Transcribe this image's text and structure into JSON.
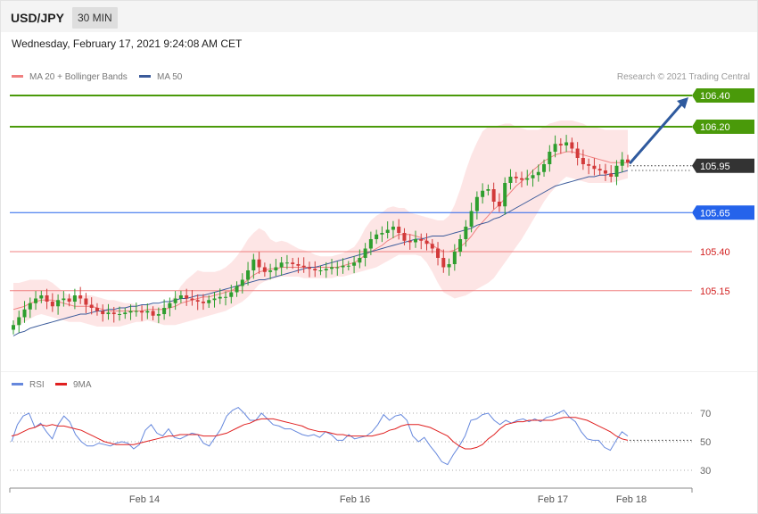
{
  "header": {
    "symbol": "USD/JPY",
    "timeframe": "30 MIN",
    "datetime": "Wednesday, February 17, 2021 9:24:08 AM CET"
  },
  "legend": {
    "ma20_label": "MA 20 + Bollinger Bands",
    "ma50_label": "MA 50",
    "credit": "Research © 2021 Trading Central"
  },
  "rsi_legend": {
    "rsi_label": "RSI",
    "ma_label": "9MA"
  },
  "colors": {
    "ma20": "#f08080",
    "ma50": "#3a5a9a",
    "bollinger_fill": "#fde0e0",
    "up_candle": "#2e9e2e",
    "down_candle": "#d23a3a",
    "target": "#4a9a0a",
    "pivot": "#2563eb",
    "support": "#f08080",
    "support_text": "#d22020",
    "current": "#333333",
    "arrow": "#2f5a9e",
    "rsi": "#6688dd",
    "rsi_ma": "#e02020"
  },
  "chart_data": [
    {
      "type": "candlestick",
      "title": "USD/JPY",
      "x_ticks": [
        "Feb 14",
        "Feb 16",
        "Feb 17",
        "Feb 18"
      ],
      "ylim": [
        104.85,
        106.55
      ],
      "levels": [
        {
          "value": 106.4,
          "label": "106.40",
          "kind": "target"
        },
        {
          "value": 106.2,
          "label": "106.20",
          "kind": "target"
        },
        {
          "value": 105.95,
          "label": "105.95",
          "kind": "current"
        },
        {
          "value": 105.65,
          "label": "105.65",
          "kind": "pivot"
        },
        {
          "value": 105.4,
          "label": "105.40",
          "kind": "support"
        },
        {
          "value": 105.15,
          "label": "105.15",
          "kind": "support"
        }
      ],
      "close": [
        104.93,
        104.98,
        105.03,
        105.07,
        105.1,
        105.12,
        105.08,
        105.05,
        105.09,
        105.1,
        105.08,
        105.12,
        105.1,
        105.06,
        105.04,
        105.02,
        105.0,
        105.01,
        105.0,
        105.0,
        105.01,
        105.02,
        105.02,
        105.01,
        105.02,
        104.99,
        105.0,
        105.04,
        105.07,
        105.1,
        105.12,
        105.1,
        105.09,
        105.08,
        105.07,
        105.09,
        105.1,
        105.11,
        105.11,
        105.14,
        105.18,
        105.22,
        105.28,
        105.35,
        105.3,
        105.27,
        105.28,
        105.3,
        105.33,
        105.33,
        105.32,
        105.31,
        105.3,
        105.29,
        105.28,
        105.28,
        105.29,
        105.3,
        105.3,
        105.31,
        105.31,
        105.33,
        105.36,
        105.42,
        105.48,
        105.51,
        105.52,
        105.54,
        105.56,
        105.52,
        105.47,
        105.46,
        105.48,
        105.47,
        105.45,
        105.42,
        105.36,
        105.3,
        105.32,
        105.4,
        105.48,
        105.56,
        105.66,
        105.75,
        105.79,
        105.8,
        105.72,
        105.69,
        105.84,
        105.88,
        105.87,
        105.86,
        105.87,
        105.89,
        105.91,
        105.96,
        106.04,
        106.09,
        106.08,
        106.1,
        106.06,
        106.0,
        105.96,
        105.95,
        105.93,
        105.92,
        105.9,
        105.88,
        105.95,
        105.99,
        105.97
      ],
      "bollinger_upper": [
        105.2,
        105.2,
        105.21,
        105.22,
        105.22,
        105.22,
        105.22,
        105.2,
        105.17,
        105.14,
        105.12,
        105.11,
        105.12,
        105.12,
        105.12,
        105.11,
        105.1,
        105.09,
        105.09,
        105.08,
        105.07,
        105.07,
        105.06,
        105.06,
        105.06,
        105.06,
        105.06,
        105.06,
        105.08,
        105.12,
        105.18,
        105.22,
        105.25,
        105.28,
        105.27,
        105.27,
        105.27,
        105.28,
        105.3,
        105.33,
        105.37,
        105.42,
        105.48,
        105.52,
        105.55,
        105.53,
        105.48,
        105.46,
        105.47,
        105.46,
        105.44,
        105.42,
        105.41,
        105.4,
        105.38,
        105.37,
        105.37,
        105.37,
        105.38,
        105.39,
        105.41,
        105.43,
        105.48,
        105.55,
        105.6,
        105.63,
        105.65,
        105.68,
        105.69,
        105.68,
        105.68,
        105.65,
        105.64,
        105.63,
        105.62,
        105.61,
        105.6,
        105.6,
        105.63,
        105.7,
        105.8,
        105.92,
        106.02,
        106.1,
        106.17,
        106.2,
        106.2,
        106.21,
        106.22,
        106.22,
        106.2,
        106.19,
        106.18,
        106.18,
        106.18,
        106.2,
        106.22,
        106.23,
        106.24,
        106.24,
        106.24,
        106.23,
        106.22,
        106.2,
        106.2,
        106.19,
        106.18,
        106.18,
        106.18,
        106.18,
        106.18
      ],
      "bollinger_lower": [
        104.92,
        104.93,
        104.95,
        104.97,
        104.99,
        105.0,
        104.99,
        104.98,
        104.97,
        104.96,
        104.95,
        104.95,
        104.95,
        104.94,
        104.93,
        104.92,
        104.92,
        104.92,
        104.92,
        104.92,
        104.93,
        104.94,
        104.95,
        104.95,
        104.96,
        104.95,
        104.94,
        104.93,
        104.93,
        104.93,
        104.94,
        104.95,
        104.96,
        104.97,
        104.98,
        104.99,
        105.0,
        105.01,
        105.02,
        105.04,
        105.06,
        105.08,
        105.11,
        105.15,
        105.19,
        105.21,
        105.22,
        105.23,
        105.24,
        105.24,
        105.24,
        105.24,
        105.23,
        105.23,
        105.23,
        105.23,
        105.23,
        105.23,
        105.24,
        105.24,
        105.25,
        105.26,
        105.27,
        105.28,
        105.29,
        105.3,
        105.32,
        105.34,
        105.36,
        105.38,
        105.38,
        105.38,
        105.38,
        105.37,
        105.33,
        105.27,
        105.2,
        105.14,
        105.12,
        105.1,
        105.11,
        105.12,
        105.14,
        105.16,
        105.18,
        105.2,
        105.23,
        105.28,
        105.33,
        105.38,
        105.43,
        105.48,
        105.54,
        105.6,
        105.66,
        105.72,
        105.77,
        105.81,
        105.85,
        105.88,
        105.87,
        105.86,
        105.85,
        105.84,
        105.84,
        105.84,
        105.84,
        105.84,
        105.85,
        105.86,
        105.87
      ],
      "ma20": [
        105.03,
        105.04,
        105.05,
        105.07,
        105.08,
        105.09,
        105.09,
        105.09,
        105.08,
        105.07,
        105.06,
        105.05,
        105.05,
        105.05,
        105.05,
        105.04,
        105.03,
        105.02,
        105.02,
        105.02,
        105.02,
        105.02,
        105.02,
        105.02,
        105.03,
        105.03,
        105.03,
        105.03,
        105.04,
        105.05,
        105.07,
        105.08,
        105.09,
        105.1,
        105.11,
        105.11,
        105.12,
        105.13,
        105.14,
        105.15,
        105.17,
        105.19,
        105.22,
        105.25,
        105.27,
        105.28,
        105.29,
        105.29,
        105.3,
        105.3,
        105.3,
        105.3,
        105.3,
        105.3,
        105.3,
        105.3,
        105.3,
        105.3,
        105.3,
        105.31,
        105.32,
        105.33,
        105.35,
        105.38,
        105.4,
        105.42,
        105.44,
        105.47,
        105.49,
        105.51,
        105.51,
        105.51,
        105.5,
        105.49,
        105.47,
        105.44,
        105.42,
        105.4,
        105.4,
        105.41,
        105.43,
        105.46,
        105.5,
        105.55,
        105.59,
        105.63,
        105.67,
        105.7,
        105.74,
        105.78,
        105.82,
        105.85,
        105.88,
        105.92,
        105.95,
        105.98,
        106.0,
        106.02,
        106.03,
        106.04,
        106.04,
        106.03,
        106.02,
        106.01,
        106.0,
        105.99,
        105.98,
        105.97,
        105.97,
        105.97,
        105.97
      ],
      "ma50": [
        104.86,
        104.88,
        104.89,
        104.91,
        104.92,
        104.93,
        104.94,
        104.95,
        104.96,
        104.97,
        104.98,
        104.99,
        105.0,
        105.0,
        105.01,
        105.02,
        105.02,
        105.03,
        105.03,
        105.04,
        105.04,
        105.05,
        105.05,
        105.06,
        105.06,
        105.07,
        105.07,
        105.08,
        105.08,
        105.09,
        105.1,
        105.1,
        105.11,
        105.12,
        105.12,
        105.13,
        105.14,
        105.15,
        105.16,
        105.17,
        105.18,
        105.19,
        105.2,
        105.21,
        105.22,
        105.22,
        105.23,
        105.24,
        105.25,
        105.26,
        105.27,
        105.28,
        105.29,
        105.3,
        105.3,
        105.31,
        105.32,
        105.33,
        105.34,
        105.35,
        105.36,
        105.37,
        105.38,
        105.39,
        105.4,
        105.41,
        105.42,
        105.43,
        105.44,
        105.45,
        105.46,
        105.47,
        105.48,
        105.48,
        105.49,
        105.5,
        105.5,
        105.5,
        105.51,
        105.52,
        105.53,
        105.54,
        105.55,
        105.57,
        105.58,
        105.59,
        105.61,
        105.62,
        105.64,
        105.66,
        105.68,
        105.7,
        105.72,
        105.74,
        105.76,
        105.78,
        105.8,
        105.82,
        105.83,
        105.84,
        105.85,
        105.86,
        105.87,
        105.88,
        105.88,
        105.89,
        105.89,
        105.9,
        105.9,
        105.91,
        105.92
      ]
    },
    {
      "type": "line",
      "title": "RSI",
      "ylim": [
        20,
        80
      ],
      "y_ticks": [
        30,
        50,
        70
      ],
      "series": [
        {
          "name": "RSI",
          "values": [
            50,
            62,
            68,
            70,
            60,
            63,
            57,
            52,
            62,
            68,
            64,
            55,
            50,
            47,
            47,
            49,
            48,
            47,
            49,
            50,
            49,
            45,
            48,
            58,
            62,
            56,
            54,
            59,
            53,
            52,
            54,
            56,
            55,
            49,
            47,
            53,
            59,
            68,
            72,
            74,
            70,
            65,
            65,
            70,
            66,
            62,
            61,
            59,
            59,
            57,
            55,
            54,
            55,
            53,
            57,
            55,
            51,
            51,
            55,
            52,
            53,
            54,
            57,
            62,
            69,
            65,
            68,
            69,
            65,
            54,
            50,
            53,
            47,
            42,
            36,
            34,
            41,
            47,
            54,
            65,
            66,
            69,
            70,
            65,
            62,
            65,
            63,
            65,
            66,
            64,
            66,
            64,
            67,
            68,
            70,
            72,
            67,
            64,
            57,
            52,
            51,
            51,
            46,
            44,
            51,
            57,
            54
          ]
        },
        {
          "name": "9MA",
          "values": [
            54,
            55,
            57,
            59,
            60,
            62,
            61,
            62,
            61,
            61,
            60,
            59,
            58,
            56,
            54,
            52,
            50,
            49,
            48,
            48,
            48,
            48,
            49,
            50,
            51,
            52,
            53,
            54,
            54,
            55,
            55,
            55,
            55,
            54,
            54,
            54,
            55,
            56,
            58,
            60,
            62,
            63,
            65,
            66,
            66,
            66,
            65,
            64,
            63,
            62,
            61,
            59,
            58,
            57,
            57,
            56,
            55,
            55,
            54,
            54,
            54,
            54,
            54,
            55,
            56,
            58,
            59,
            61,
            62,
            62,
            62,
            61,
            60,
            58,
            56,
            54,
            50,
            47,
            45,
            45,
            46,
            48,
            52,
            55,
            59,
            62,
            63,
            64,
            64,
            65,
            65,
            65,
            65,
            65,
            66,
            67,
            67,
            67,
            66,
            65,
            63,
            61,
            59,
            57,
            54,
            52,
            51
          ]
        }
      ]
    }
  ]
}
